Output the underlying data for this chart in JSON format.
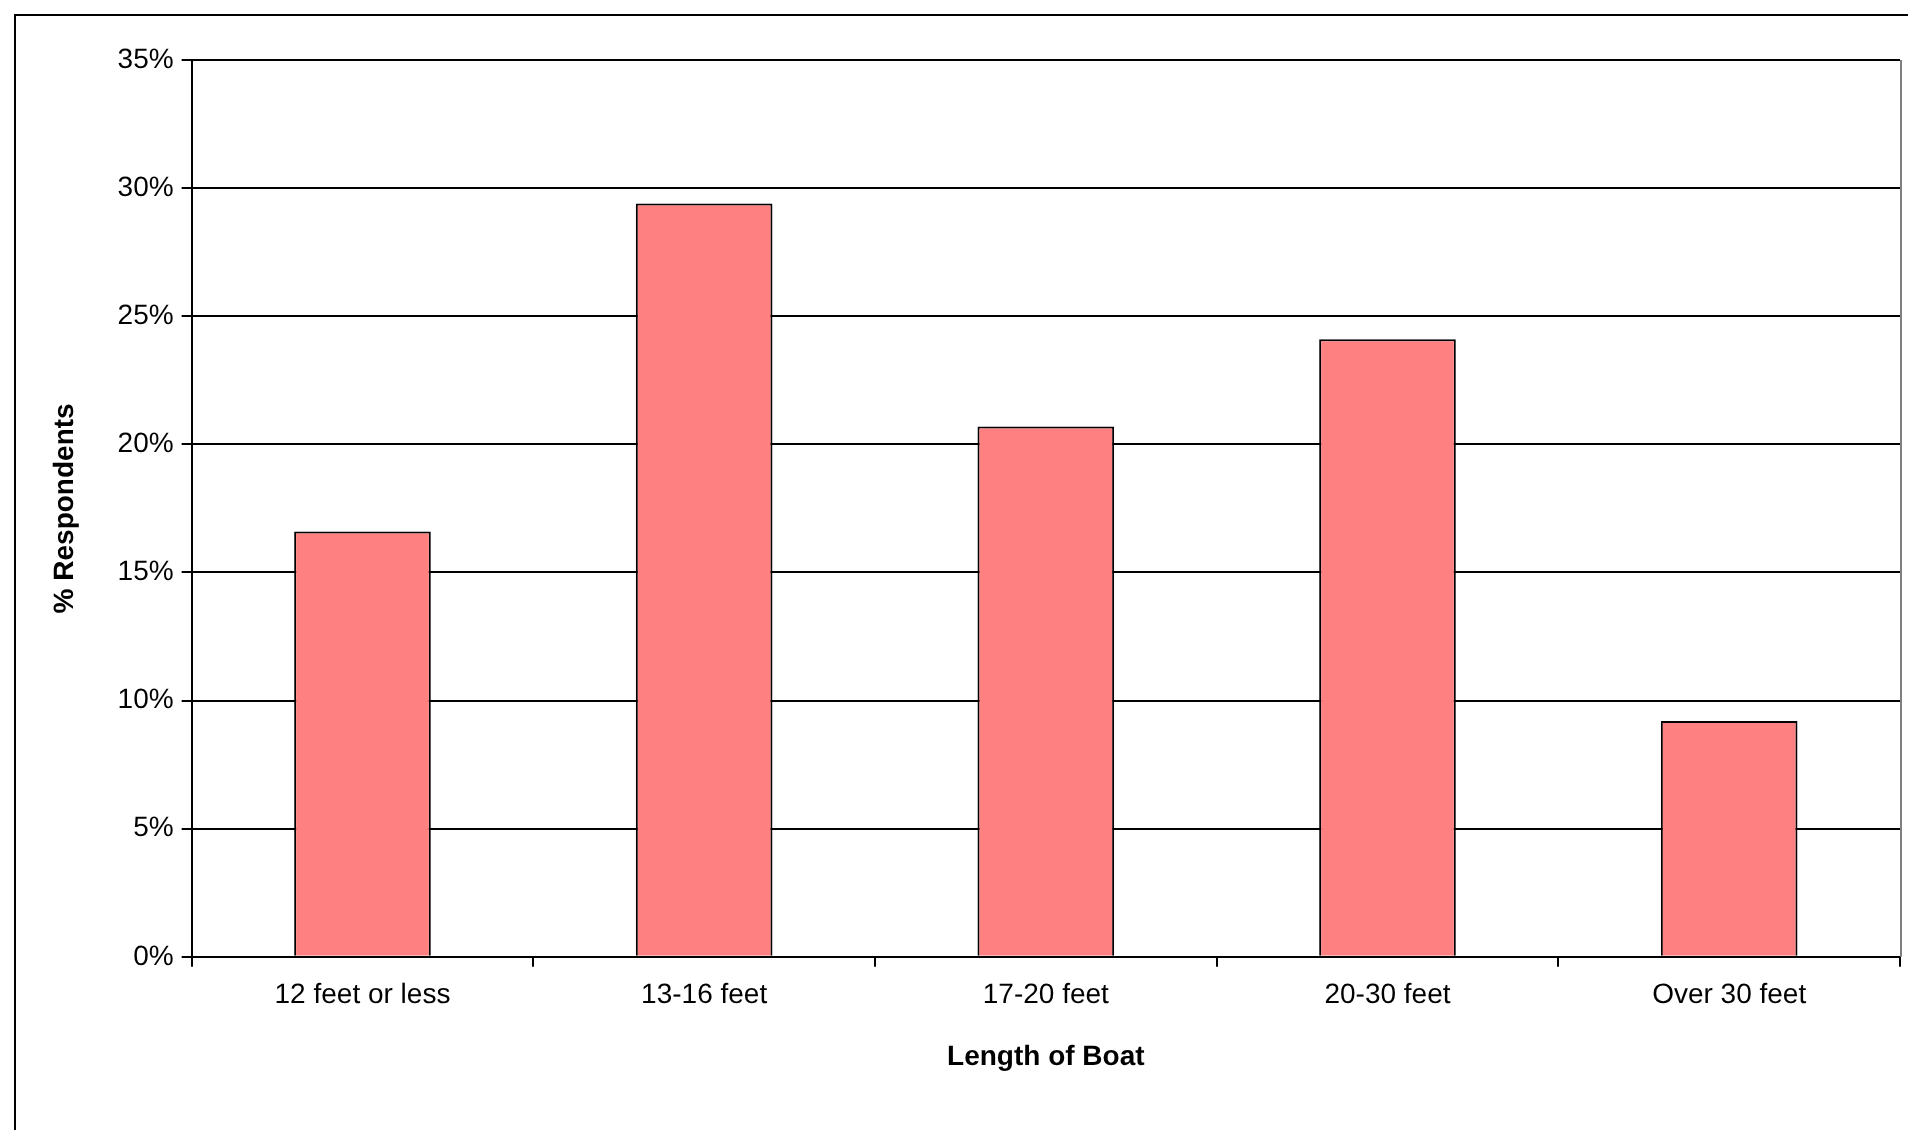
{
  "chart_data": {
    "type": "bar",
    "xlabel": "Length of Boat",
    "ylabel": "% Respondents",
    "categories": [
      "12 feet or less",
      "13-16 feet",
      "17-20 feet",
      "20-30 feet",
      "Over 30 feet"
    ],
    "values": [
      16.6,
      29.4,
      20.7,
      24.1,
      9.2
    ],
    "color": "#ff8080",
    "ylim": [
      0,
      35
    ],
    "yticks": [
      {
        "value": 0,
        "label": "0%"
      },
      {
        "value": 5,
        "label": "5%"
      },
      {
        "value": 10,
        "label": "10%"
      },
      {
        "value": 15,
        "label": "15%"
      },
      {
        "value": 20,
        "label": "20%"
      },
      {
        "value": 25,
        "label": "25%"
      },
      {
        "value": 30,
        "label": "30%"
      },
      {
        "value": 35,
        "label": "35%"
      }
    ],
    "grid": "y",
    "legend": false
  }
}
